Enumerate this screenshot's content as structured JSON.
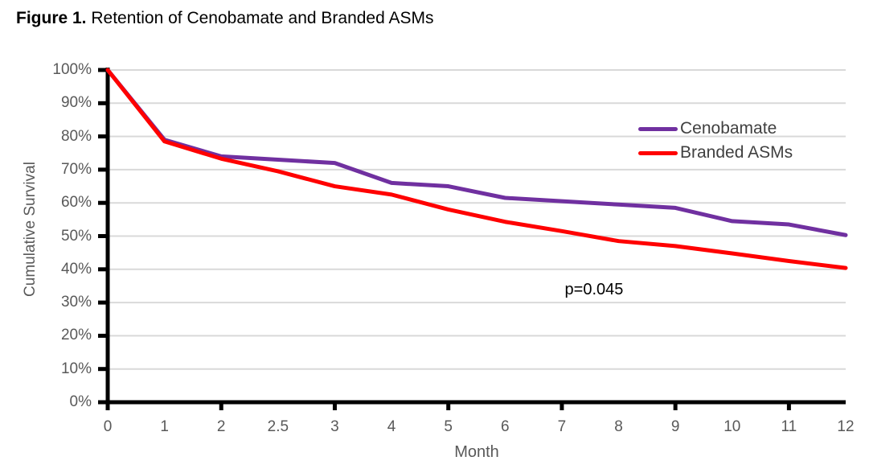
{
  "title": {
    "prefix": "Figure 1.",
    "rest": " Retention of Cenobamate and Branded ASMs"
  },
  "chart_data": {
    "type": "line",
    "title": "Figure 1. Retention of Cenobamate and Branded ASMs",
    "xlabel": "Month",
    "ylabel": "Cumulative Survival",
    "categories": [
      "0",
      "1",
      "2",
      "2.5",
      "3",
      "4",
      "5",
      "6",
      "7",
      "8",
      "9",
      "10",
      "11",
      "12"
    ],
    "x_tick_interval": 2,
    "y_ticks": [
      "0%",
      "10%",
      "20%",
      "30%",
      "40%",
      "50%",
      "60%",
      "70%",
      "80%",
      "90%",
      "100%"
    ],
    "ylim": [
      0,
      100
    ],
    "grid": "horizontal",
    "legend_position": "upper-right-inside",
    "series": [
      {
        "name": "Cenobamate",
        "color": "#7030A0",
        "values": [
          100,
          79,
          74,
          73,
          72,
          66,
          65,
          61.5,
          60.5,
          59.5,
          58.5,
          54.5,
          53.5,
          50.3
        ]
      },
      {
        "name": "Branded ASMs",
        "color": "#FF0000",
        "values": [
          100,
          78.5,
          73.3,
          69.5,
          65,
          62.5,
          58,
          54.3,
          51.5,
          48.5,
          47,
          44.8,
          42.5,
          40.4
        ]
      }
    ],
    "annotation": {
      "text": "p=0.045",
      "x_frac": 0.659,
      "y_value": 33.3
    }
  },
  "colors": {
    "axis": "#000000",
    "gridline": "#D9D9D9",
    "tick_label": "#595959",
    "legend_text": "#404040"
  }
}
